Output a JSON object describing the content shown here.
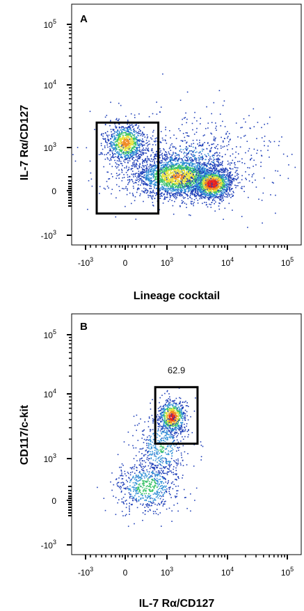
{
  "chart_data": [
    {
      "type": "scatter",
      "panel": "A",
      "xlabel": "Lineage cocktail",
      "ylabel": "IL-7 Rα/CD127",
      "scale": "biexponential (log with linear region around 0)",
      "x_ticks": [
        "-10^3",
        "0",
        "10^3",
        "10^4",
        "10^5"
      ],
      "y_ticks": [
        "-10^3",
        "0",
        "10^3",
        "10^4",
        "10^5"
      ],
      "x_ticks_display": [
        {
          "base": "-10",
          "exp": "3"
        },
        {
          "base": "0",
          "exp": ""
        },
        {
          "base": "10",
          "exp": "3"
        },
        {
          "base": "10",
          "exp": "4"
        },
        {
          "base": "10",
          "exp": "5"
        }
      ],
      "y_ticks_display": [
        {
          "base": "-10",
          "exp": "3"
        },
        {
          "base": "0",
          "exp": ""
        },
        {
          "base": "10",
          "exp": "3"
        },
        {
          "base": "10",
          "exp": "4"
        },
        {
          "base": "10",
          "exp": "5"
        }
      ],
      "populations": [
        {
          "description": "Lineage-negative CD127+ cluster",
          "x_center": 0,
          "y_center": 1200
        },
        {
          "description": "Lineage-positive cluster (main)",
          "x_center": 1500,
          "y_center": 200
        },
        {
          "description": "Lineage-positive cluster (densest)",
          "x_center": 5500,
          "y_center": 100
        }
      ],
      "gate": {
        "x_range": [
          -500,
          600
        ],
        "y_range": [
          -300,
          2500
        ]
      },
      "density_colors": [
        "#1f3fb8",
        "#2f8fd6",
        "#3cc46a",
        "#e6e03a",
        "#f08a24",
        "#e8231e"
      ]
    },
    {
      "type": "scatter",
      "panel": "B",
      "xlabel": "IL-7 Rα/CD127",
      "ylabel": "CD117/c-kit",
      "scale": "biexponential (log with linear region around 0)",
      "x_ticks": [
        "-10^3",
        "0",
        "10^3",
        "10^4",
        "10^5"
      ],
      "y_ticks": [
        "-10^3",
        "0",
        "10^3",
        "10^4",
        "10^5"
      ],
      "x_ticks_display": [
        {
          "base": "-10",
          "exp": "3"
        },
        {
          "base": "0",
          "exp": ""
        },
        {
          "base": "10",
          "exp": "3"
        },
        {
          "base": "10",
          "exp": "4"
        },
        {
          "base": "10",
          "exp": "5"
        }
      ],
      "y_ticks_display": [
        {
          "base": "-10",
          "exp": "3"
        },
        {
          "base": "0",
          "exp": ""
        },
        {
          "base": "10",
          "exp": "3"
        },
        {
          "base": "10",
          "exp": "4"
        },
        {
          "base": "10",
          "exp": "5"
        }
      ],
      "populations": [
        {
          "description": "CD127+ c-kit+ cluster",
          "x_center": 1200,
          "y_center": 4500
        },
        {
          "description": "diffuse low population",
          "x_center": 300,
          "y_center": 200
        }
      ],
      "gate": {
        "x_range": [
          500,
          3200
        ],
        "y_range": [
          1700,
          13000
        ],
        "label": "62.9"
      },
      "density_colors": [
        "#1f3fb8",
        "#2f8fd6",
        "#3cc46a",
        "#e6e03a",
        "#f08a24",
        "#e8231e"
      ]
    }
  ]
}
